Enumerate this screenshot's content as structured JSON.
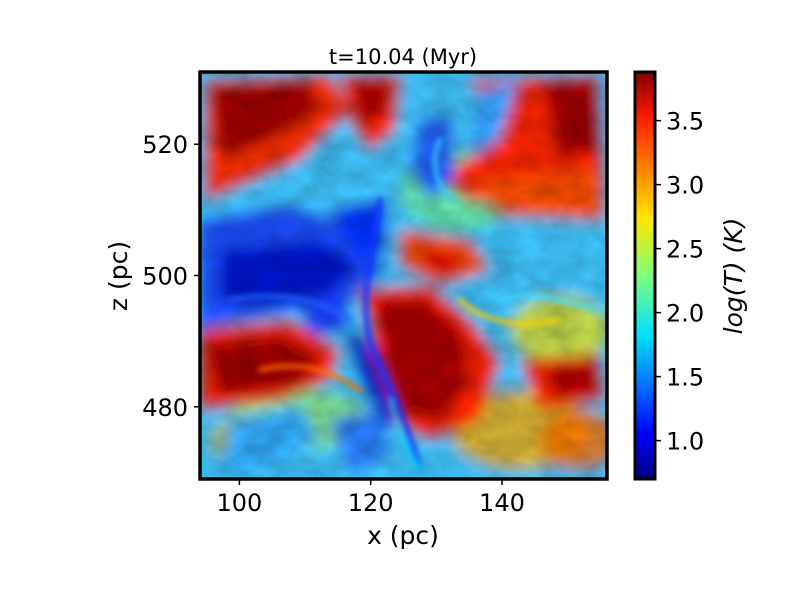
{
  "chart_data": {
    "type": "heatmap",
    "title": "t=10.04 (Myr)",
    "xlabel": "x (pc)",
    "ylabel": "z (pc)",
    "colorbar_label": "log(T) (K)",
    "colormap": "jet",
    "xlim": [
      94,
      156
    ],
    "ylim": [
      469,
      531
    ],
    "xticks": [
      {
        "value": 100,
        "label": "100"
      },
      {
        "value": 120,
        "label": "120"
      },
      {
        "value": 140,
        "label": "140"
      }
    ],
    "yticks": [
      {
        "value": 480,
        "label": "480"
      },
      {
        "value": 500,
        "label": "500"
      },
      {
        "value": 520,
        "label": "520"
      }
    ],
    "colorbar_range": [
      0.7,
      3.88
    ],
    "colorbar_ticks": [
      {
        "value": 1.0,
        "label": "1.0"
      },
      {
        "value": 1.5,
        "label": "1.5"
      },
      {
        "value": 2.0,
        "label": "2.0"
      },
      {
        "value": 2.5,
        "label": "2.5"
      },
      {
        "value": 3.0,
        "label": "3.0"
      },
      {
        "value": 3.5,
        "label": "3.5"
      }
    ],
    "regions": [
      {
        "name": "hot-top-left",
        "x": [
          95,
          110
        ],
        "z": [
          518,
          530
        ],
        "log_T": 3.8
      },
      {
        "name": "hot-top-center",
        "x": [
          113,
          121
        ],
        "z": [
          516,
          530
        ],
        "log_T": 3.7
      },
      {
        "name": "hot-top-right",
        "x": [
          140,
          155
        ],
        "z": [
          518,
          530
        ],
        "log_T": 3.7
      },
      {
        "name": "hot-upper-band",
        "x": [
          140,
          155
        ],
        "z": [
          508,
          516
        ],
        "log_T": 3.6
      },
      {
        "name": "cold-central-band",
        "x": [
          95,
          118
        ],
        "z": [
          494,
          508
        ],
        "log_T": 1.2
      },
      {
        "name": "hot-center-lower",
        "x": [
          118,
          134
        ],
        "z": [
          476,
          494
        ],
        "log_T": 3.8
      },
      {
        "name": "hot-left-lower",
        "x": [
          94,
          110
        ],
        "z": [
          479,
          490
        ],
        "log_T": 3.8
      },
      {
        "name": "hot-right-lower",
        "x": [
          146,
          156
        ],
        "z": [
          480,
          488
        ],
        "log_T": 3.6
      },
      {
        "name": "cold-lower-filament",
        "x": [
          116,
          125
        ],
        "z": [
          476,
          492
        ],
        "log_T": 1.0
      },
      {
        "name": "warm-bottom-right",
        "x": [
          138,
          150
        ],
        "z": [
          470,
          478
        ],
        "log_T": 3.2
      }
    ]
  }
}
